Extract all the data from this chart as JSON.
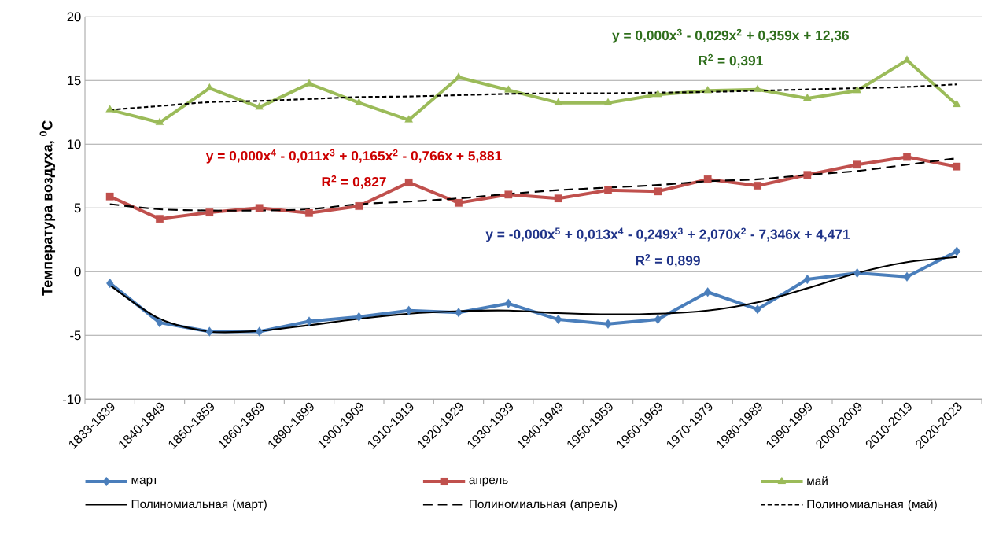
{
  "chart_data": {
    "type": "line",
    "ylabel": "Температура воздуха, $^{0}$С",
    "categories": [
      "1833-1839",
      "1840-1849",
      "1850-1859",
      "1860-1869",
      "1890-1899",
      "1900-1909",
      "1910-1919",
      "1920-1929",
      "1930-1939",
      "1940-1949",
      "1950-1959",
      "1960-1969",
      "1970-1979",
      "1980-1989",
      "1990-1999",
      "2000-2009",
      "2010-2019",
      "2020-2023"
    ],
    "ylim": [
      -10,
      20
    ],
    "yticks": [
      -10,
      -5,
      0,
      5,
      10,
      15,
      20
    ],
    "grid": "y",
    "legend": "bottom",
    "series": [
      {
        "name": "март",
        "color": "#4a7ebb",
        "marker": "diamond",
        "line_style": "solid",
        "values": [
          -0.9,
          -4.0,
          -4.7,
          -4.7,
          -3.9,
          -3.55,
          -3.05,
          -3.2,
          -2.5,
          -3.75,
          -4.1,
          -3.75,
          -1.6,
          -2.95,
          -0.6,
          -0.1,
          -0.4,
          1.6
        ]
      },
      {
        "name": "апрель",
        "color": "#c0504d",
        "marker": "square",
        "line_style": "solid",
        "values": [
          5.9,
          4.15,
          4.65,
          5.0,
          4.6,
          5.15,
          7.0,
          5.4,
          6.05,
          5.75,
          6.4,
          6.3,
          7.25,
          6.75,
          7.6,
          8.4,
          9.0,
          8.25
        ]
      },
      {
        "name": "май",
        "color": "#9bbb59",
        "marker": "triangle",
        "line_style": "solid",
        "values": [
          12.7,
          11.7,
          14.4,
          12.9,
          14.75,
          13.25,
          11.9,
          15.25,
          14.25,
          13.25,
          13.25,
          13.9,
          14.2,
          14.3,
          13.6,
          14.2,
          16.6,
          13.1
        ]
      },
      {
        "name": "Полиномиальная (март)",
        "color": "#000000",
        "marker": "none",
        "line_style": "solid",
        "values": [
          -1.05,
          -3.7,
          -4.7,
          -4.65,
          -4.2,
          -3.7,
          -3.3,
          -3.1,
          -3.05,
          -3.25,
          -3.35,
          -3.3,
          -3.05,
          -2.4,
          -1.3,
          -0.1,
          0.75,
          1.15
        ]
      },
      {
        "name": "Полиномиальная (апрель)",
        "color": "#000000",
        "marker": "none",
        "line_style": "dashed",
        "values": [
          5.3,
          4.9,
          4.8,
          4.8,
          4.9,
          5.3,
          5.5,
          5.75,
          6.1,
          6.4,
          6.6,
          6.8,
          7.1,
          7.25,
          7.6,
          7.9,
          8.4,
          8.9
        ]
      },
      {
        "name": "Полиномиальная (май)",
        "color": "#000000",
        "marker": "none",
        "line_style": "dotted",
        "values": [
          12.7,
          13.0,
          13.3,
          13.4,
          13.55,
          13.7,
          13.75,
          13.85,
          13.95,
          14.0,
          14.0,
          14.05,
          14.1,
          14.2,
          14.3,
          14.4,
          14.5,
          14.7
        ]
      }
    ],
    "annotations": [
      "y = 0,000x$^{3}$ - 0,029x$^{2}$ + 0,359x + 12,36",
      "R$^{2}$ = 0,391",
      "y = 0,000x$^{4}$ - 0,011x$^{3}$ + 0,165x$^{2}$ - 0,766x + 5,881",
      "R$^{2}$ = 0,827",
      "y = -0,000x$^{5}$ + 0,013x$^{4}$ - 0,249x$^{3}$ + 2,070x$^{2}$ - 7,346x + 4,471",
      "R$^{2}$ = 0,899"
    ]
  }
}
